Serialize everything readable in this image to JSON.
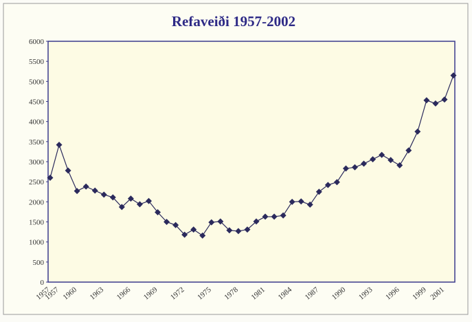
{
  "chart_data": {
    "type": "line",
    "title": "Refaveiði 1957-2002",
    "categories": [
      "1957",
      "1957",
      null,
      "1960",
      null,
      null,
      "1963",
      null,
      null,
      "1966",
      null,
      null,
      "1969",
      null,
      null,
      "1972",
      null,
      null,
      "1975",
      null,
      null,
      "1978",
      null,
      null,
      "1981",
      null,
      null,
      "1984",
      null,
      null,
      "1987",
      null,
      null,
      "1990",
      null,
      null,
      "1993",
      null,
      null,
      "1996",
      null,
      null,
      "1999",
      null,
      "2001",
      null
    ],
    "series": [
      {
        "name": "Refaveiði",
        "color": "#2b2a5c",
        "values": [
          2600,
          3420,
          2780,
          2270,
          2380,
          2280,
          2180,
          2110,
          1870,
          2080,
          1940,
          2020,
          1740,
          1500,
          1420,
          1180,
          1310,
          1160,
          1490,
          1510,
          1290,
          1270,
          1310,
          1510,
          1630,
          1630,
          1660,
          2000,
          2010,
          1930,
          2250,
          2420,
          2490,
          2830,
          2860,
          2950,
          3060,
          3170,
          3040,
          2910,
          3280,
          3750,
          4530,
          4450,
          4550,
          5150
        ]
      }
    ],
    "ylim": [
      0,
      6000
    ],
    "yticks": [
      0,
      500,
      1000,
      1500,
      2000,
      2500,
      3000,
      3500,
      4000,
      4500,
      5000,
      5500,
      6000
    ],
    "grid": false
  }
}
